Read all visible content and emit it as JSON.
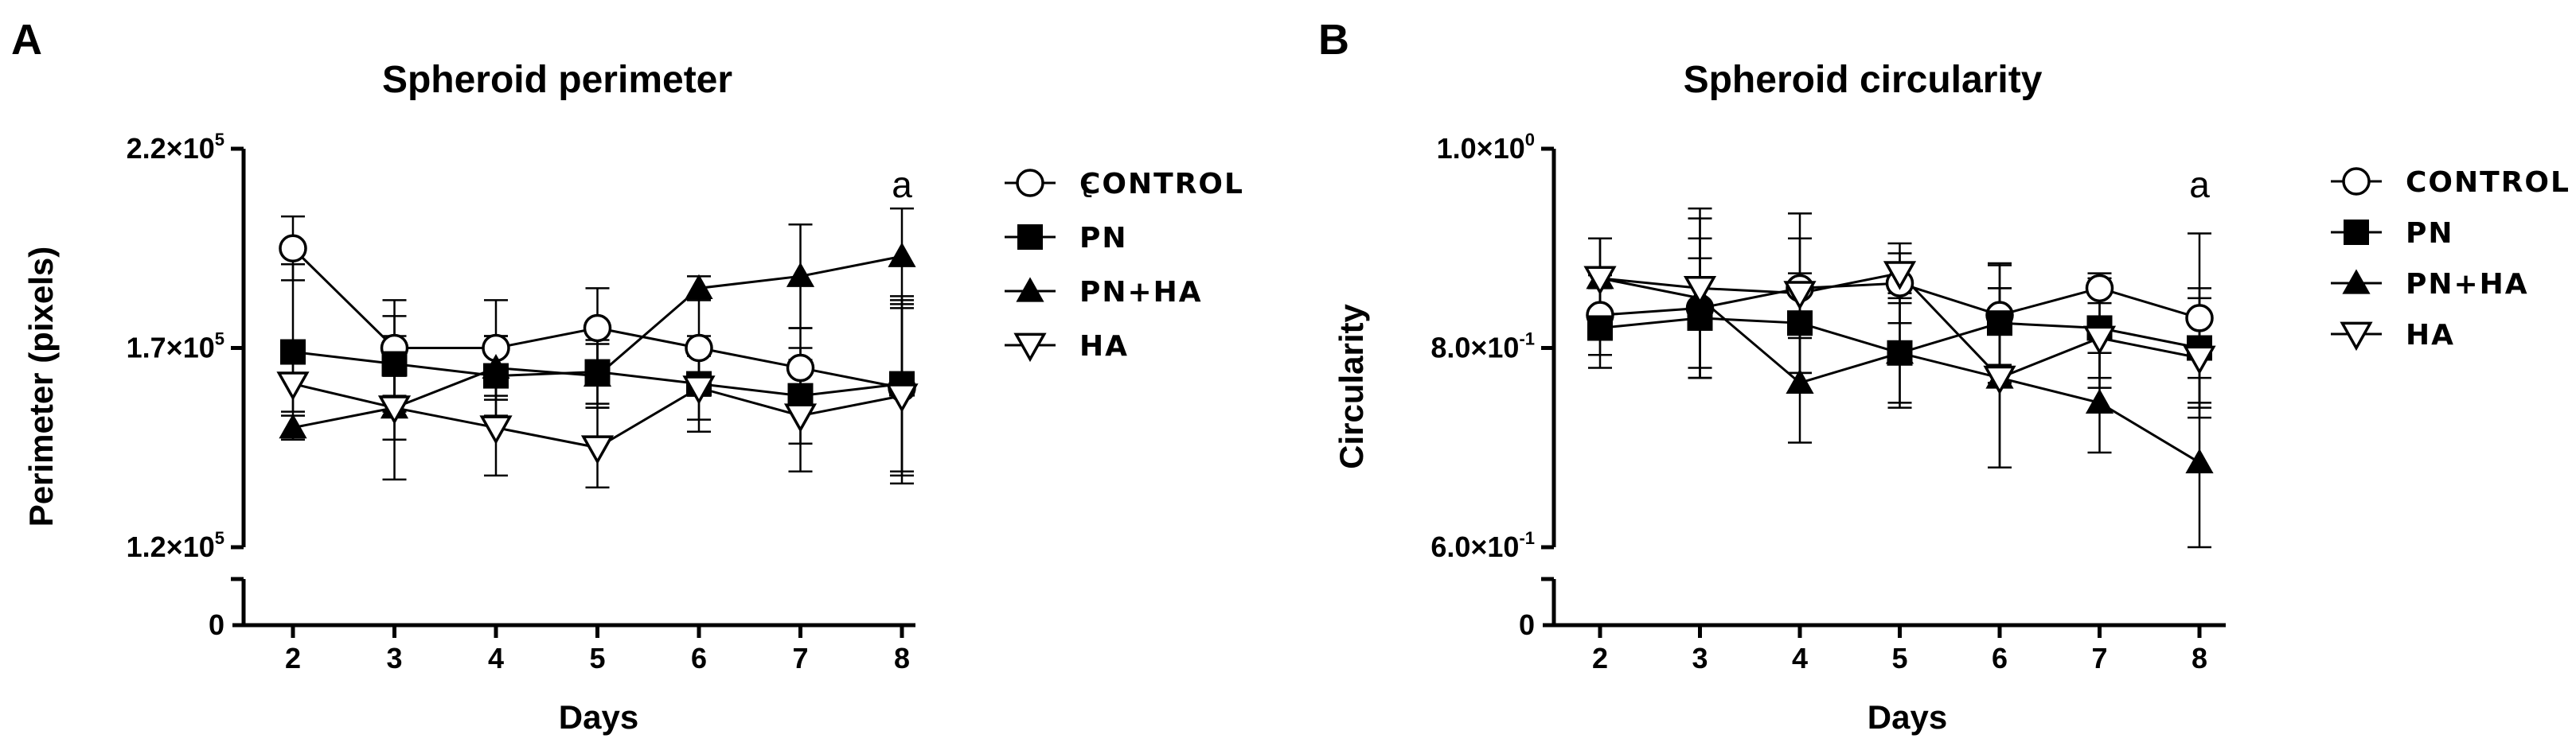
{
  "chart_data": [
    {
      "panel_letter": "A",
      "type": "line",
      "title": "Spheroid perimeter",
      "xlabel": "Days",
      "ylabel": "Perimeter (pixels)",
      "x": [
        2,
        3,
        4,
        5,
        6,
        7,
        8
      ],
      "ylim": [
        120000,
        220000
      ],
      "yticks": [
        {
          "value": 220000,
          "mantissa": "2.2",
          "exponent": "5"
        },
        {
          "value": 170000,
          "mantissa": "1.7",
          "exponent": "5"
        },
        {
          "value": 120000,
          "mantissa": "1.2",
          "exponent": "5"
        }
      ],
      "y_break_zero_label": "0",
      "series": [
        {
          "name": "CONTROL",
          "marker": "open-circle",
          "values": [
            195000,
            170000,
            170000,
            175000,
            170000,
            165000,
            160000
          ],
          "errors": [
            8000,
            12000,
            12000,
            10000,
            12000,
            10000,
            22000
          ]
        },
        {
          "name": "PN",
          "marker": "filled-square",
          "values": [
            169000,
            166000,
            163000,
            164000,
            161000,
            158000,
            161000
          ],
          "errors": [
            22000,
            12000,
            10000,
            8000,
            12000,
            12000,
            22000
          ]
        },
        {
          "name": "PN+HA",
          "marker": "filled-triangle",
          "values": [
            150000,
            155000,
            165000,
            163000,
            185000,
            188000,
            193000
          ],
          "errors": [
            3000,
            8000,
            8000,
            8000,
            3000,
            13000,
            12000
          ]
        },
        {
          "name": "HA",
          "marker": "open-triangle-down",
          "values": [
            161000,
            155000,
            150000,
            145000,
            160000,
            153000,
            158000
          ],
          "errors": [
            7000,
            18000,
            12000,
            10000,
            8000,
            14000,
            22000
          ]
        }
      ],
      "annotations": [
        {
          "x": 8,
          "text": "a"
        }
      ],
      "legend_stray_text": "t",
      "legend_position": "right"
    },
    {
      "panel_letter": "B",
      "type": "line",
      "title": "Spheroid circularity",
      "xlabel": "Days",
      "ylabel": "Circularity",
      "x": [
        2,
        3,
        4,
        5,
        6,
        7,
        8
      ],
      "ylim": [
        0.6,
        1.0
      ],
      "yticks": [
        {
          "value": 1.0,
          "mantissa": "1.0",
          "exponent": "0"
        },
        {
          "value": 0.8,
          "mantissa": "8.0",
          "exponent": "-1"
        },
        {
          "value": 0.6,
          "mantissa": "6.0",
          "exponent": "-1"
        }
      ],
      "y_break_zero_label": "0",
      "series": [
        {
          "name": "CONTROL",
          "marker": "open-circle",
          "values": [
            0.833,
            0.84,
            0.86,
            0.865,
            0.833,
            0.86,
            0.83
          ],
          "errors": [
            0.04,
            0.07,
            0.05,
            0.04,
            0.05,
            0.015,
            0.085
          ]
        },
        {
          "name": "PN",
          "marker": "filled-square",
          "values": [
            0.82,
            0.83,
            0.825,
            0.795,
            0.825,
            0.82,
            0.8
          ],
          "errors": [
            0.04,
            0.06,
            0.05,
            0.055,
            0.06,
            0.05,
            0.06
          ]
        },
        {
          "name": "PN+HA",
          "marker": "filled-triangle",
          "values": [
            0.87,
            0.85,
            0.765,
            0.795,
            0.77,
            0.745,
            0.685
          ],
          "errors": [
            0.04,
            0.08,
            0.06,
            0.05,
            0.09,
            0.05,
            0.085
          ]
        },
        {
          "name": "HA",
          "marker": "open-triangle-down",
          "values": [
            0.87,
            0.86,
            0.855,
            0.875,
            0.77,
            0.81,
            0.79
          ],
          "errors": [
            0.04,
            0.08,
            0.08,
            0.02,
            0.09,
            0.05,
            0.06
          ]
        }
      ],
      "annotations": [
        {
          "x": 8,
          "text": "a"
        }
      ],
      "legend_position": "right"
    }
  ]
}
